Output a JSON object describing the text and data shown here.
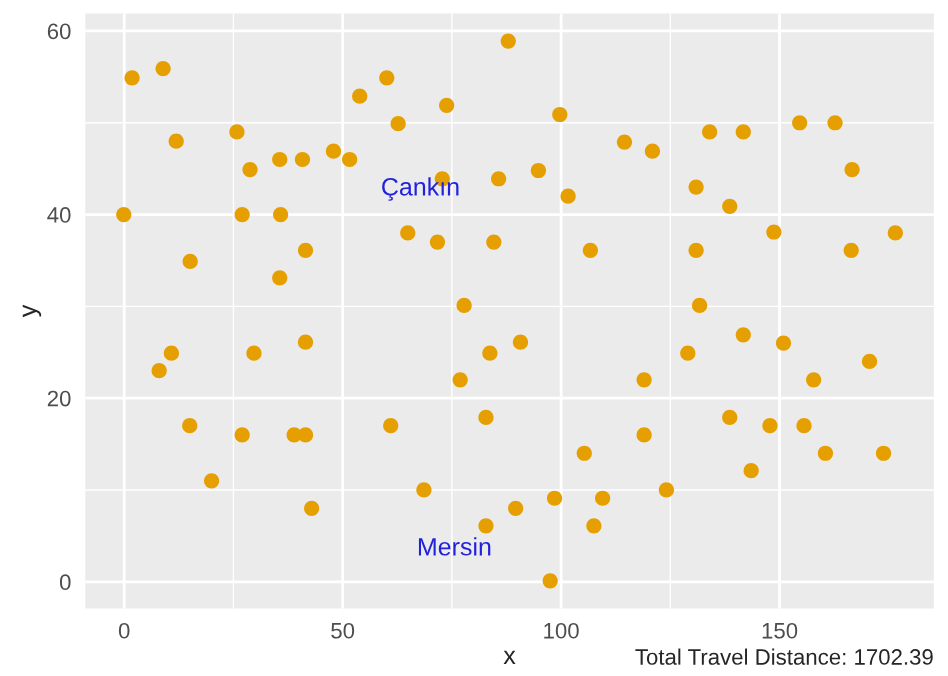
{
  "chart_data": {
    "type": "scatter",
    "xlabel": "x",
    "ylabel": "y",
    "xlim": [
      -8.9,
      185.3
    ],
    "ylim": [
      -2.9,
      61.9
    ],
    "xticks": [
      0,
      50,
      100,
      150
    ],
    "yticks": [
      0,
      20,
      40,
      60
    ],
    "grid": true,
    "marker": "circle",
    "series": [
      {
        "color": "#e69f00",
        "x": [
          1.8,
          8.9,
          11.9,
          -0.1,
          15.1,
          25.8,
          28.8,
          35.6,
          27.0,
          35.8,
          41.5,
          35.6,
          40.8,
          47.9,
          51.6,
          53.9,
          60.1,
          62.7,
          64.9,
          87.9,
          73.8,
          99.7,
          94.8,
          72.8,
          85.7,
          101.6,
          84.6,
          71.7,
          106.7,
          114.5,
          77.8,
          120.9,
          134.0,
          141.7,
          154.6,
          162.7,
          166.6,
          130.9,
          138.6,
          148.7,
          176.5,
          130.9,
          166.4,
          131.7,
          8.0,
          10.8,
          15.0,
          29.7,
          27.0,
          20.0,
          41.5,
          38.9,
          41.5,
          42.9,
          61.0,
          83.7,
          90.7,
          76.9,
          82.8,
          68.6,
          105.3,
          89.6,
          98.5,
          109.5,
          107.5,
          82.8,
          97.5,
          119.0,
          119.0,
          141.7,
          150.9,
          170.6,
          157.8,
          129.0,
          138.6,
          147.8,
          155.6,
          160.5,
          173.8,
          143.5,
          124.1
        ],
        "values": [
          54.9,
          55.9,
          48.0,
          40.0,
          34.9,
          49.0,
          44.9,
          46.0,
          40.0,
          40.0,
          36.1,
          33.1,
          46.0,
          46.9,
          46.0,
          52.9,
          54.9,
          49.9,
          38.0,
          58.9,
          51.9,
          50.9,
          44.8,
          43.9,
          43.9,
          42.0,
          37.0,
          37.0,
          36.1,
          47.9,
          30.1,
          46.9,
          49.0,
          49.0,
          50.0,
          50.0,
          44.9,
          43.0,
          40.9,
          38.1,
          38.0,
          36.1,
          36.1,
          30.1,
          23.0,
          24.9,
          17.0,
          24.9,
          16.0,
          11.0,
          26.1,
          16.0,
          16.0,
          8.0,
          17.0,
          24.9,
          26.1,
          22.0,
          17.9,
          10.0,
          14.0,
          8.0,
          9.1,
          9.1,
          6.1,
          6.1,
          0.1,
          22.0,
          16.0,
          26.9,
          26.0,
          24.0,
          22.0,
          24.9,
          17.9,
          17.0,
          17.0,
          14.0,
          14.0,
          12.1,
          10.0
        ]
      }
    ],
    "annotations": [
      "Çankın",
      "Mersin",
      "Total Travel Distance: 1702.39"
    ]
  }
}
